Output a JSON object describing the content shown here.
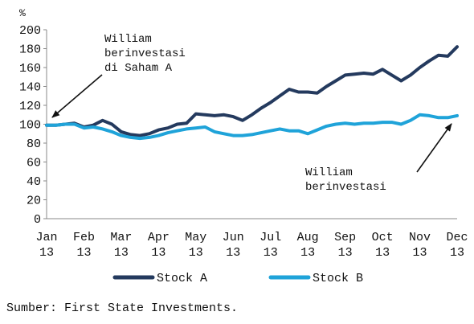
{
  "chart_data": {
    "type": "line",
    "unit_label": "%",
    "ylim": [
      0,
      200
    ],
    "y_ticks": [
      0,
      20,
      40,
      60,
      80,
      100,
      120,
      140,
      160,
      180,
      200
    ],
    "x_ticks": [
      {
        "month": "Jan",
        "year": "13"
      },
      {
        "month": "Feb",
        "year": "13"
      },
      {
        "month": "Mar",
        "year": "13"
      },
      {
        "month": "Apr",
        "year": "13"
      },
      {
        "month": "May",
        "year": "13"
      },
      {
        "month": "Jun",
        "year": "13"
      },
      {
        "month": "Jul",
        "year": "13"
      },
      {
        "month": "Aug",
        "year": "13"
      },
      {
        "month": "Sep",
        "year": "13"
      },
      {
        "month": "Oct",
        "year": "13"
      },
      {
        "month": "Nov",
        "year": "13"
      },
      {
        "month": "Dec",
        "year": "13"
      }
    ],
    "grid": false,
    "legend_position": "bottom",
    "series": [
      {
        "name": "Stock A",
        "color": "#243a5e",
        "x": [
          0,
          0.25,
          0.5,
          0.75,
          1,
          1.25,
          1.5,
          1.75,
          2,
          2.25,
          2.5,
          2.75,
          3,
          3.25,
          3.5,
          3.75,
          4,
          4.25,
          4.5,
          4.75,
          5,
          5.25,
          5.5,
          5.75,
          6,
          6.25,
          6.5,
          6.75,
          7,
          7.25,
          7.5,
          7.75,
          8,
          8.25,
          8.5,
          8.75,
          9,
          9.25,
          9.5,
          9.75,
          10,
          10.25,
          10.5,
          10.75,
          11
        ],
        "y": [
          99,
          99,
          100,
          101,
          97,
          99,
          104,
          100,
          92,
          89,
          88,
          90,
          94,
          96,
          100,
          101,
          111,
          110,
          109,
          110,
          108,
          104,
          110,
          117,
          123,
          130,
          137,
          134,
          134,
          133,
          140,
          146,
          152,
          153,
          154,
          153,
          158,
          152,
          146,
          152,
          160,
          167,
          173,
          172,
          182
        ]
      },
      {
        "name": "Stock B",
        "color": "#1fa3d9",
        "x": [
          0,
          0.25,
          0.5,
          0.75,
          1,
          1.25,
          1.5,
          1.75,
          2,
          2.25,
          2.5,
          2.75,
          3,
          3.25,
          3.5,
          3.75,
          4,
          4.25,
          4.5,
          4.75,
          5,
          5.25,
          5.5,
          5.75,
          6,
          6.25,
          6.5,
          6.75,
          7,
          7.25,
          7.5,
          7.75,
          8,
          8.25,
          8.5,
          8.75,
          9,
          9.25,
          9.5,
          9.75,
          10,
          10.25,
          10.5,
          10.75,
          11
        ],
        "y": [
          99,
          99,
          100,
          100,
          96,
          97,
          95,
          92,
          88,
          86,
          85,
          86,
          88,
          91,
          93,
          95,
          96,
          97,
          92,
          90,
          88,
          88,
          89,
          91,
          93,
          95,
          93,
          93,
          90,
          94,
          98,
          100,
          101,
          100,
          101,
          101,
          102,
          102,
          100,
          104,
          110,
          109,
          107,
          107,
          109
        ]
      }
    ],
    "annotations": [
      {
        "lines": [
          "William",
          "berinvestasi",
          "di Saham A"
        ]
      },
      {
        "lines": [
          "William",
          "berinvestasi"
        ]
      }
    ]
  },
  "source_text": "Sumber: First State Investments."
}
